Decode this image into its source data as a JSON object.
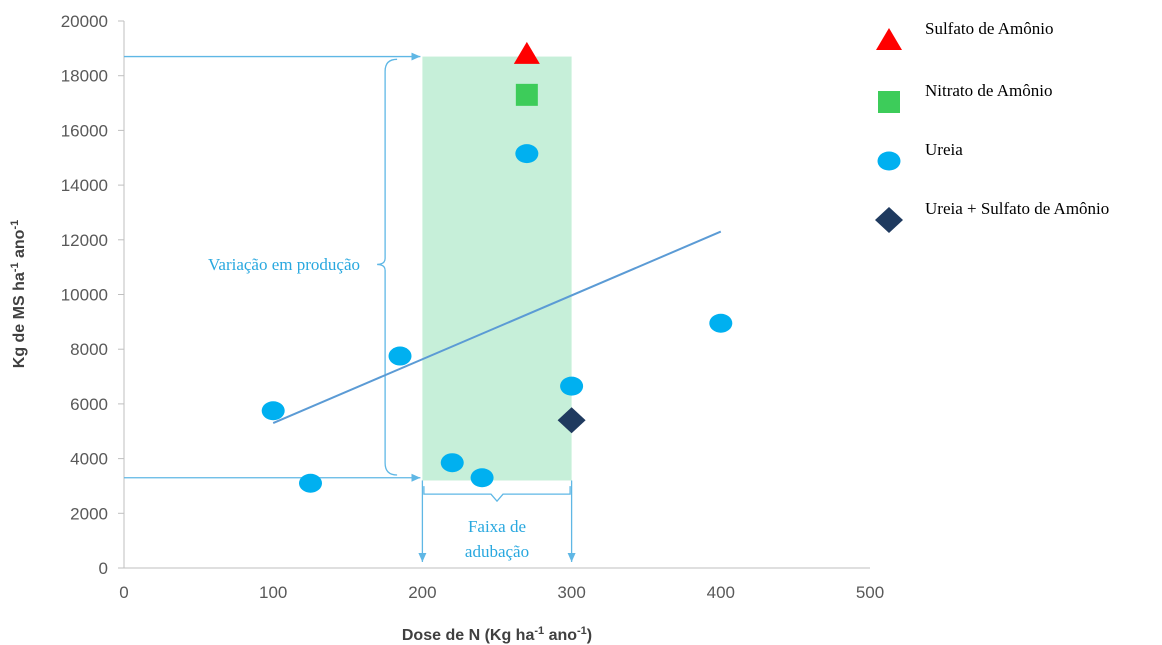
{
  "chart_data": {
    "type": "scatter",
    "xlabel": "Dose de N (Kg ha",
    "xlabel_sup1": "-1",
    "xlabel_mid": " ano",
    "xlabel_sup2": "-1",
    "xlabel_end": ")",
    "ylabel": "Kg de MS ha",
    "ylabel_sup1": "-1",
    "ylabel_mid": " ano",
    "ylabel_sup2": "-1",
    "xlim": [
      0,
      500
    ],
    "ylim": [
      0,
      20000
    ],
    "x_ticks": [
      0,
      100,
      200,
      300,
      400,
      500
    ],
    "y_ticks": [
      0,
      2000,
      4000,
      6000,
      8000,
      10000,
      12000,
      14000,
      16000,
      18000,
      20000
    ],
    "x_tick_labels": [
      "0",
      "100",
      "200",
      "300",
      "400",
      "500"
    ],
    "y_tick_labels": [
      "0",
      "2000",
      "4000",
      "6000",
      "8000",
      "10000",
      "12000",
      "14000",
      "16000",
      "18000",
      "20000"
    ],
    "grid": false,
    "legend_position": "right",
    "series": [
      {
        "name": "Sulfato de Amônio",
        "marker": "triangle",
        "color": "#ff0000",
        "points": [
          {
            "x": 270,
            "y": 18800
          }
        ]
      },
      {
        "name": "Nitrato de Amônio",
        "marker": "square",
        "color": "#3dcc5a",
        "points": [
          {
            "x": 270,
            "y": 17300
          }
        ]
      },
      {
        "name": "Ureia",
        "marker": "circle",
        "color": "#00b0f0",
        "points": [
          {
            "x": 100,
            "y": 5750
          },
          {
            "x": 125,
            "y": 3100
          },
          {
            "x": 185,
            "y": 7750
          },
          {
            "x": 220,
            "y": 3850
          },
          {
            "x": 240,
            "y": 3300
          },
          {
            "x": 270,
            "y": 15150
          },
          {
            "x": 300,
            "y": 6650
          },
          {
            "x": 400,
            "y": 8950
          }
        ]
      },
      {
        "name": "Ureia + Sulfato de Amônio",
        "marker": "diamond",
        "color": "#1f3a5f",
        "points": [
          {
            "x": 300,
            "y": 5400
          }
        ]
      }
    ],
    "trendline": {
      "color": "#5b9bd5",
      "from": {
        "x": 100,
        "y": 5300
      },
      "to": {
        "x": 400,
        "y": 12300
      }
    },
    "shaded_band": {
      "color": "#c6efd9",
      "x_range": [
        200,
        300
      ],
      "y_range": [
        3200,
        18700
      ]
    },
    "annotations": {
      "color": "#29a8df",
      "production_variation_label": "Variação em produção",
      "production_range": [
        3300,
        18700
      ],
      "fertilization_band_line1": "Faixa de",
      "fertilization_band_line2": "adubação"
    }
  }
}
